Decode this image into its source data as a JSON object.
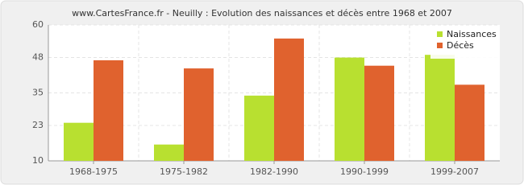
{
  "chart_data": {
    "type": "bar",
    "title": "www.CartesFrance.fr - Neuilly : Evolution des naissances et décès entre 1968 et 2007",
    "categories": [
      "1968-1975",
      "1975-1982",
      "1982-1990",
      "1990-1999",
      "1999-2007"
    ],
    "series": [
      {
        "name": "Naissances",
        "color": "#b8e030",
        "values": [
          24,
          16,
          34,
          48,
          49
        ]
      },
      {
        "name": "Décès",
        "color": "#e0622e",
        "values": [
          47,
          44,
          55,
          45,
          38
        ]
      }
    ],
    "ylim": [
      10,
      60
    ],
    "yticks": [
      10,
      23,
      35,
      48,
      60
    ],
    "grid": true,
    "legend": "top-right"
  }
}
